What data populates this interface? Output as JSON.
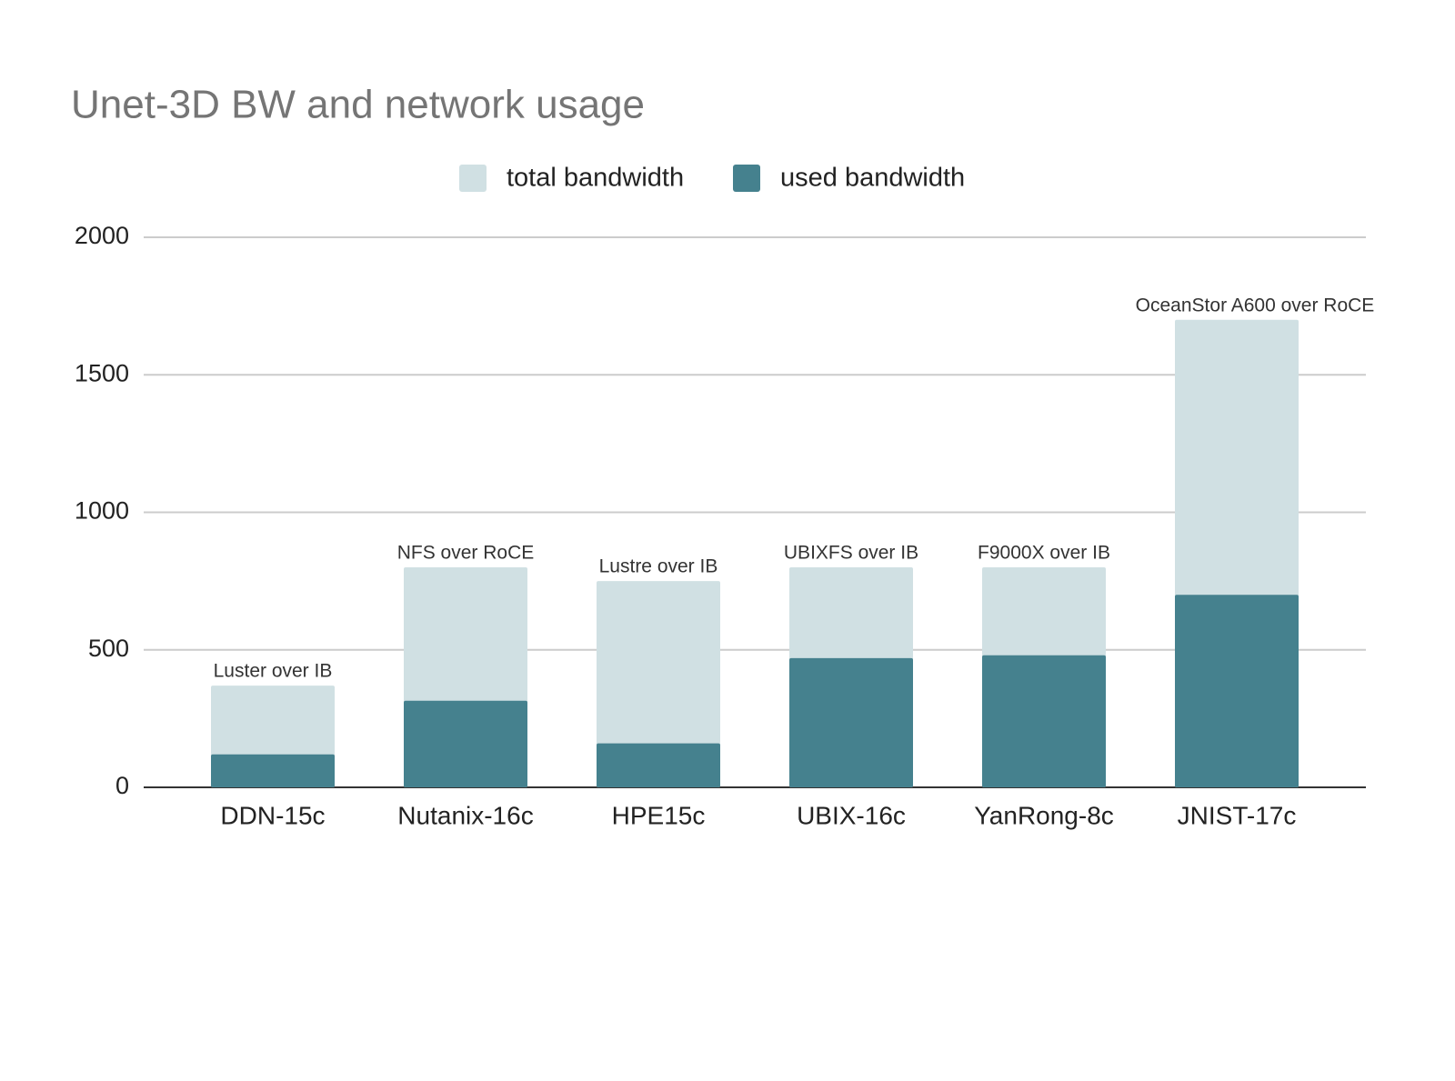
{
  "chart_data": {
    "type": "bar",
    "title": "Unet-3D BW and network usage",
    "categories": [
      "DDN-15c",
      "Nutanix-16c",
      "HPE15c",
      "UBIX-16c",
      "YanRong-8c",
      "JNIST-17c"
    ],
    "series": [
      {
        "name": "total bandwidth",
        "color": "#d0e0e3",
        "values": [
          370,
          800,
          750,
          800,
          800,
          1700
        ]
      },
      {
        "name": "used bandwidth",
        "color": "#45818e",
        "values": [
          120,
          315,
          160,
          470,
          480,
          700
        ]
      }
    ],
    "annotations": [
      "Luster over IB",
      "NFS over RoCE",
      "Lustre over IB",
      "UBIXFS over IB",
      "F9000X over IB",
      "OceanStor A600 over RoCE"
    ],
    "ylim": [
      0,
      2000
    ],
    "yticks": [
      0,
      500,
      1000,
      1500,
      2000
    ],
    "grid": true,
    "legend": "top"
  }
}
